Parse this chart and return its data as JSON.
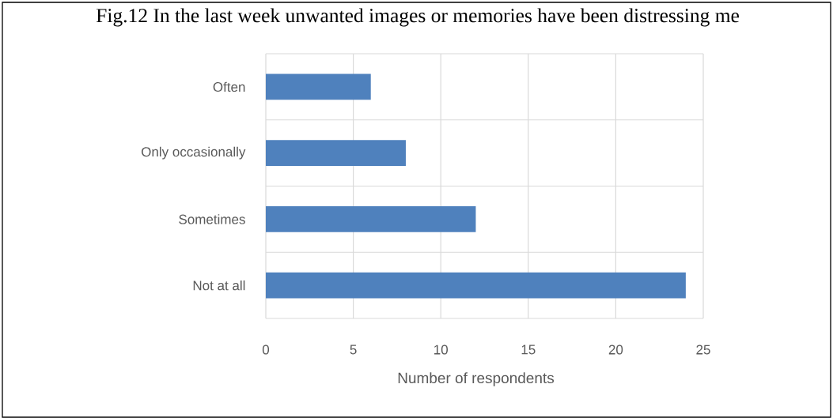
{
  "chart_data": {
    "type": "bar",
    "orientation": "horizontal",
    "title": "Fig.12 In the last week unwanted images or memories have been distressing me",
    "categories": [
      "Often",
      "Only occasionally",
      "Sometimes",
      "Not at all"
    ],
    "values": [
      6,
      8,
      12,
      24
    ],
    "color": "#4f81bd",
    "xlabel": "Number of respondents",
    "xlim": [
      0,
      25
    ],
    "xticks": [
      0,
      5,
      10,
      15,
      20,
      25
    ],
    "grid": true
  }
}
